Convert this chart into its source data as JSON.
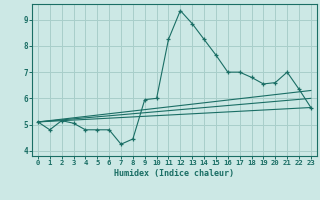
{
  "title": "",
  "xlabel": "Humidex (Indice chaleur)",
  "xlim": [
    -0.5,
    23.5
  ],
  "ylim": [
    3.8,
    9.6
  ],
  "xticks": [
    0,
    1,
    2,
    3,
    4,
    5,
    6,
    7,
    8,
    9,
    10,
    11,
    12,
    13,
    14,
    15,
    16,
    17,
    18,
    19,
    20,
    21,
    22,
    23
  ],
  "yticks": [
    4,
    5,
    6,
    7,
    8,
    9
  ],
  "background_color": "#cce8e5",
  "grid_color": "#a8ceca",
  "line_color": "#1a6e65",
  "main_line": {
    "x": [
      0,
      1,
      2,
      3,
      4,
      5,
      6,
      7,
      8,
      9,
      10,
      11,
      12,
      13,
      14,
      15,
      16,
      17,
      18,
      19,
      20,
      21,
      22,
      23
    ],
    "y": [
      5.1,
      4.8,
      5.15,
      5.05,
      4.8,
      4.8,
      4.8,
      4.25,
      4.45,
      5.95,
      6.0,
      8.25,
      9.35,
      8.85,
      8.25,
      7.65,
      7.0,
      7.0,
      6.8,
      6.55,
      6.6,
      7.0,
      6.35,
      5.65
    ]
  },
  "ref_lines": [
    {
      "x": [
        0,
        23
      ],
      "y": [
        5.1,
        5.65
      ]
    },
    {
      "x": [
        0,
        23
      ],
      "y": [
        5.1,
        6.3
      ]
    },
    {
      "x": [
        0,
        23
      ],
      "y": [
        5.1,
        6.0
      ]
    }
  ],
  "xlabel_fontsize": 6.0,
  "tick_fontsize": 5.2
}
